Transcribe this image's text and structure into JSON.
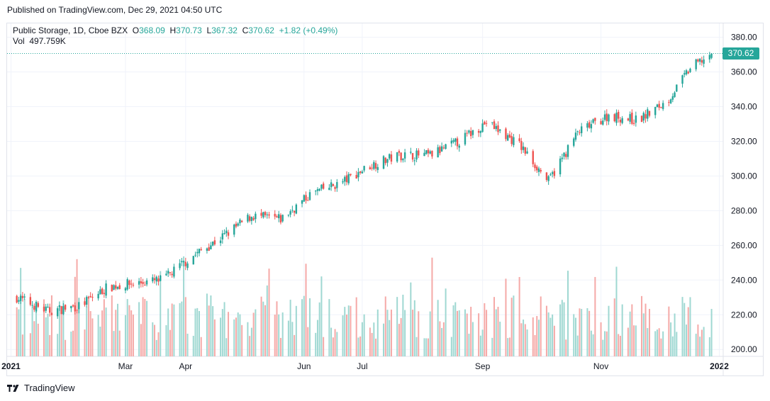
{
  "header": {
    "published": "Published on TradingView.com, Dec 29, 2021 04:50 UTC"
  },
  "legend": {
    "symbol": "Public Storage, 1D, Cboe BZX",
    "o_label": "O",
    "o": "368.09",
    "h_label": "H",
    "h": "370.73",
    "l_label": "L",
    "l": "367.32",
    "c_label": "C",
    "c": "370.62",
    "change": "+1.82 (+0.49%)",
    "vol_label": "Vol",
    "vol": "497.759K"
  },
  "last_price": "370.62",
  "footer": {
    "brand": "TradingView"
  },
  "colors": {
    "up": "#26a69a",
    "down": "#ef5350",
    "vol_up": "#9fd8d2",
    "vol_down": "#f5a9a7",
    "grid": "#f0f3fa",
    "axis_text": "#131722"
  },
  "chart_data": {
    "type": "candlestick",
    "symbol": "Public Storage",
    "interval": "1D",
    "exchange": "Cboe BZX",
    "y_ticks": [
      200,
      220,
      240,
      260,
      280,
      300,
      320,
      340,
      360,
      380
    ],
    "y_tick_labels": [
      "200.00",
      "220.00",
      "240.00",
      "260.00",
      "280.00",
      "300.00",
      "320.00",
      "340.00",
      "360.00",
      "380.00"
    ],
    "ylim": [
      196,
      388
    ],
    "x_tick_labels": [
      "2021",
      "Mar",
      "Apr",
      "Jun",
      "Jul",
      "Sep",
      "Nov",
      "2022"
    ],
    "x_tick_dates": [
      "2021-01-01",
      "2021-03-01",
      "2021-04-01",
      "2021-06-01",
      "2021-07-01",
      "2021-09-01",
      "2021-11-01",
      "2022-01-01"
    ],
    "x_range": [
      "2020-12-30",
      "2022-01-03"
    ],
    "approx_close_path": [
      {
        "date": "2021-01-04",
        "close": 230
      },
      {
        "date": "2021-01-20",
        "close": 222
      },
      {
        "date": "2021-02-05",
        "close": 225
      },
      {
        "date": "2021-02-20",
        "close": 236
      },
      {
        "date": "2021-03-05",
        "close": 238
      },
      {
        "date": "2021-03-20",
        "close": 240
      },
      {
        "date": "2021-04-05",
        "close": 254
      },
      {
        "date": "2021-04-20",
        "close": 265
      },
      {
        "date": "2021-05-05",
        "close": 277
      },
      {
        "date": "2021-05-20",
        "close": 275
      },
      {
        "date": "2021-06-05",
        "close": 290
      },
      {
        "date": "2021-06-20",
        "close": 296
      },
      {
        "date": "2021-07-05",
        "close": 306
      },
      {
        "date": "2021-07-20",
        "close": 312
      },
      {
        "date": "2021-08-05",
        "close": 312
      },
      {
        "date": "2021-08-20",
        "close": 320
      },
      {
        "date": "2021-09-03",
        "close": 331
      },
      {
        "date": "2021-09-20",
        "close": 318
      },
      {
        "date": "2021-10-05",
        "close": 297
      },
      {
        "date": "2021-10-20",
        "close": 325
      },
      {
        "date": "2021-11-05",
        "close": 335
      },
      {
        "date": "2021-11-20",
        "close": 332
      },
      {
        "date": "2021-12-05",
        "close": 343
      },
      {
        "date": "2021-12-17",
        "close": 362
      },
      {
        "date": "2021-12-28",
        "close": 370.62
      }
    ],
    "volume_note": "volume histogram along bottom, scaled to pane"
  }
}
